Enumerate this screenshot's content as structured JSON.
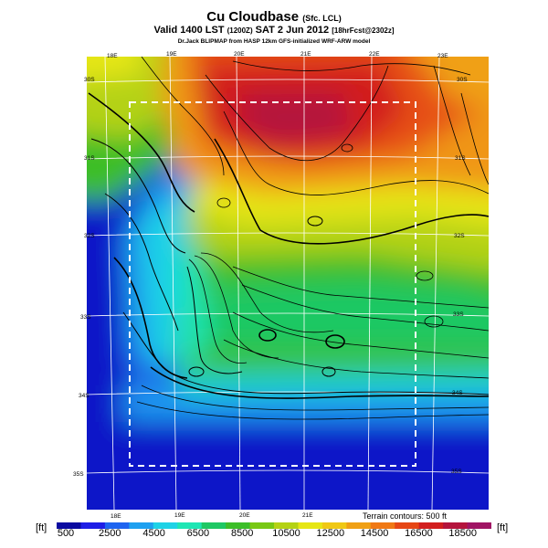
{
  "header": {
    "title": "Cu Cloudbase",
    "title_sub": "(Sfc. LCL)",
    "valid_main": "Valid 1400 LST",
    "valid_utc": "(1200Z)",
    "valid_date": "SAT 2 Jun 2012",
    "valid_fcst": "[18hrFcst@2302z]",
    "source": "Dr.Jack BLIPMAP from HASP 12km GFS-initialized WRF-ARW model"
  },
  "map": {
    "lon_labels_top": [
      "18E",
      "19E",
      "20E",
      "21E",
      "22E",
      "23E"
    ],
    "lon_labels_bottom": [
      "18E",
      "19E",
      "20E",
      "21E"
    ],
    "lat_labels_left": [
      "30S",
      "31S",
      "32S",
      "33S",
      "34S",
      "35S"
    ],
    "lat_labels_right": [
      "30S",
      "31S",
      "32S",
      "33S",
      "34S",
      "35S"
    ],
    "terrain_note": "Terrain contours: 500 ft"
  },
  "colorbar": {
    "unit_left": "[ft]",
    "unit_right": "[ft]",
    "labels": [
      "500",
      "2500",
      "4500",
      "6500",
      "8500",
      "10500",
      "12500",
      "14500",
      "16500",
      "18500"
    ],
    "colors": [
      "#0a0aa0",
      "#1e1ee6",
      "#1e64f0",
      "#1ea0f0",
      "#1ed2e6",
      "#1ee6b4",
      "#1ec864",
      "#3cbe28",
      "#78c814",
      "#b4d214",
      "#e6e614",
      "#f0c814",
      "#f0a014",
      "#f07814",
      "#e64614",
      "#d21e1e",
      "#b4143c",
      "#a01464"
    ]
  }
}
